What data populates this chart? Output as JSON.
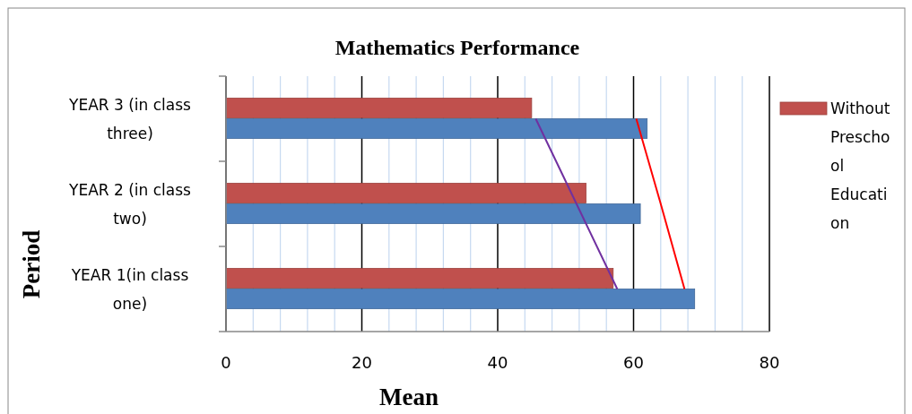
{
  "chart_data": {
    "type": "bar",
    "orientation": "horizontal",
    "title": "Mathematics Performance",
    "xlabel": "Mean",
    "ylabel": "Period",
    "categories": [
      "YEAR 3 (in class three)",
      "YEAR 2 (in class two)",
      "YEAR 1(in class one)"
    ],
    "series": [
      {
        "name": "Without Preschool Education",
        "color": "#c0504d",
        "values": [
          45,
          53,
          57
        ]
      },
      {
        "color": "#4f81bd",
        "values": [
          62,
          61,
          69
        ]
      },
      {
        "type": "line",
        "color": "#7030a0",
        "values": [
          45.6,
          51.6,
          57.6
        ]
      },
      {
        "type": "line",
        "color": "#ff0000",
        "values": [
          60.4,
          64,
          67.5
        ]
      }
    ],
    "xlim": [
      0,
      80
    ],
    "xticks": [
      0,
      {
        "value": 4,
        "label": null
      },
      {
        "value": 8,
        "label": null
      },
      {
        "value": 12,
        "label": null
      },
      {
        "value": 16,
        "label": null
      },
      20,
      {
        "value": 24,
        "label": null
      },
      {
        "value": 28,
        "label": null
      },
      {
        "value": 32,
        "label": null
      },
      {
        "value": 36,
        "label": null
      },
      40,
      {
        "value": 44,
        "label": null
      },
      {
        "value": 48,
        "label": null
      },
      {
        "value": 52,
        "label": null
      },
      {
        "value": 56,
        "label": null
      },
      60,
      {
        "value": 64,
        "label": null
      },
      {
        "value": 68,
        "label": null
      },
      {
        "value": 72,
        "label": null
      },
      {
        "value": 76,
        "label": null
      },
      80
    ],
    "grid": "x",
    "legend": "right"
  }
}
